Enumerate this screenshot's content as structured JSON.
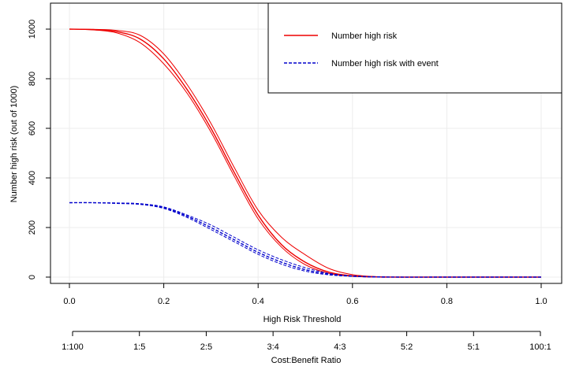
{
  "chart_data": {
    "type": "line",
    "xlabel": "High Risk Threshold",
    "ylabel": "Number high risk (out of 1000)",
    "xlim": [
      0,
      1
    ],
    "ylim": [
      0,
      1000
    ],
    "x_ticks": [
      "0.0",
      "0.2",
      "0.4",
      "0.6",
      "0.8",
      "1.0"
    ],
    "y_ticks": [
      "0",
      "200",
      "400",
      "600",
      "800",
      "1000"
    ],
    "grid": true,
    "legend_position": "top-right",
    "secondary_axis": {
      "label": "Cost:Benefit Ratio",
      "ticks": [
        "1:100",
        "1:5",
        "2:5",
        "3:4",
        "4:3",
        "5:2",
        "5:1",
        "100:1"
      ]
    },
    "x": [
      0.0,
      0.05,
      0.1,
      0.15,
      0.2,
      0.25,
      0.3,
      0.35,
      0.4,
      0.45,
      0.5,
      0.55,
      0.6,
      0.65,
      0.7,
      0.8,
      0.9,
      1.0
    ],
    "series": [
      {
        "name": "Number high risk",
        "legend": true,
        "color": "#ee0000",
        "style": "solid",
        "values": [
          1000,
          998,
          990,
          960,
          880,
          755,
          600,
          420,
          250,
          130,
          60,
          20,
          5,
          1,
          0,
          0,
          0,
          0
        ]
      },
      {
        "name": "Number high risk upper",
        "legend": false,
        "color": "#ee0000",
        "style": "solid",
        "values": [
          1000,
          999,
          995,
          975,
          900,
          775,
          620,
          440,
          270,
          160,
          90,
          35,
          10,
          2,
          0,
          0,
          0,
          0
        ]
      },
      {
        "name": "Number high risk lower",
        "legend": false,
        "color": "#ee0000",
        "style": "solid",
        "values": [
          1000,
          997,
          985,
          945,
          860,
          740,
          585,
          405,
          235,
          120,
          50,
          15,
          3,
          0,
          0,
          0,
          0,
          0
        ]
      },
      {
        "name": "Number high risk with event",
        "legend": true,
        "color": "#0000cc",
        "style": "dashed",
        "values": [
          300,
          300,
          298,
          295,
          280,
          245,
          200,
          150,
          100,
          60,
          30,
          12,
          4,
          1,
          0,
          0,
          0,
          0
        ]
      },
      {
        "name": "Number high risk with event upper",
        "legend": false,
        "color": "#0000cc",
        "style": "dashed",
        "values": [
          300,
          300,
          299,
          296,
          283,
          250,
          210,
          160,
          110,
          70,
          38,
          15,
          5,
          1,
          0,
          0,
          0,
          0
        ]
      },
      {
        "name": "Number high risk with event lower",
        "legend": false,
        "color": "#0000cc",
        "style": "dashed",
        "values": [
          300,
          300,
          297,
          293,
          277,
          240,
          192,
          142,
          92,
          52,
          24,
          9,
          3,
          0,
          0,
          0,
          0,
          0
        ]
      }
    ]
  }
}
